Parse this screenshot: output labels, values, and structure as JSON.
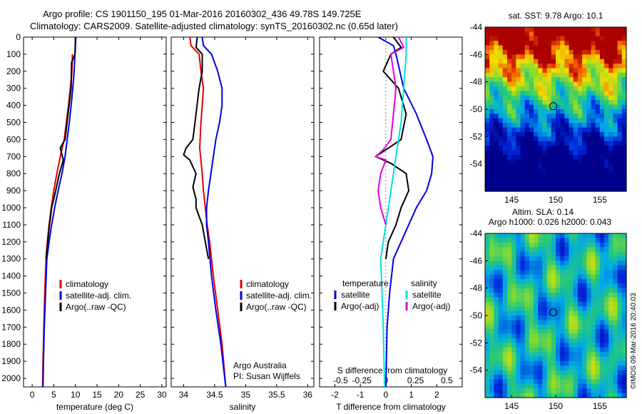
{
  "header": {
    "title_line1": "Argo profile: CS 1901150_195 01-Mar-2016 20160302_436 49.78S 149.725E",
    "title_line2": "Climatology: CARS2009. Satellite-adjusted climatology: synTS_20160302.nc (0.65d later)"
  },
  "credit": "©IMOS 09-Mar-2016 20:40:03",
  "colors": {
    "climatology": "#e00000",
    "satellite": "#0000e0",
    "argo": "#000000",
    "sat_salinity": "#00e0e0",
    "argo_salinity": "#e000e0"
  },
  "chart_data": [
    {
      "id": "temperature",
      "type": "line",
      "xlabel": "temperature (deg C)",
      "ylabel": "",
      "xlim": [
        -2,
        31
      ],
      "ylim": [
        0,
        2050
      ],
      "y_inverted": true,
      "xticks": [
        0,
        5,
        10,
        15,
        20,
        25,
        30
      ],
      "yticks": [
        0,
        100,
        200,
        300,
        400,
        500,
        600,
        700,
        800,
        900,
        1000,
        1100,
        1200,
        1300,
        1400,
        1500,
        1600,
        1700,
        1800,
        1900,
        2000
      ],
      "legend": [
        "climatology",
        "satellite-adj. clim.",
        "Argo(..raw -QC)"
      ],
      "series": [
        {
          "name": "climatology",
          "color_key": "climatology",
          "points": [
            [
              9.3,
              100
            ],
            [
              9.2,
              200
            ],
            [
              8.8,
              300
            ],
            [
              8.4,
              400
            ],
            [
              7.9,
              500
            ],
            [
              7.4,
              600
            ],
            [
              6.5,
              700
            ],
            [
              5.7,
              800
            ],
            [
              5.0,
              900
            ],
            [
              4.4,
              1000
            ],
            [
              3.9,
              1100
            ],
            [
              3.5,
              1200
            ],
            [
              3.2,
              1300
            ],
            [
              2.9,
              1500
            ],
            [
              2.7,
              1700
            ],
            [
              2.5,
              1900
            ],
            [
              2.4,
              2050
            ]
          ]
        },
        {
          "name": "satellite-adj. clim.",
          "color_key": "satellite",
          "points": [
            [
              10.0,
              0
            ],
            [
              9.9,
              100
            ],
            [
              9.7,
              200
            ],
            [
              9.4,
              300
            ],
            [
              9.0,
              400
            ],
            [
              8.6,
              500
            ],
            [
              8.1,
              600
            ],
            [
              7.6,
              700
            ],
            [
              6.9,
              800
            ],
            [
              6.0,
              900
            ],
            [
              5.2,
              1000
            ],
            [
              4.5,
              1100
            ],
            [
              3.9,
              1200
            ],
            [
              3.4,
              1300
            ],
            [
              3.1,
              1500
            ],
            [
              2.8,
              1700
            ],
            [
              2.6,
              1900
            ],
            [
              2.5,
              2050
            ]
          ]
        },
        {
          "name": "Argo(..raw -QC)",
          "color_key": "argo",
          "points": [
            [
              10.1,
              0
            ],
            [
              9.9,
              100
            ],
            [
              9.1,
              150
            ],
            [
              9.0,
              300
            ],
            [
              8.3,
              450
            ],
            [
              7.6,
              600
            ],
            [
              6.5,
              650
            ],
            [
              7.2,
              720
            ],
            [
              6.3,
              800
            ],
            [
              5.6,
              880
            ],
            [
              5.0,
              950
            ],
            [
              4.5,
              1000
            ],
            [
              4.0,
              1100
            ],
            [
              3.6,
              1200
            ],
            [
              3.2,
              1300
            ]
          ]
        }
      ]
    },
    {
      "id": "salinity",
      "type": "line",
      "xlabel": "salinity",
      "ylabel": "",
      "xlim": [
        33.8,
        36.1
      ],
      "ylim": [
        0,
        2050
      ],
      "y_inverted": true,
      "xticks": [
        34,
        34.5,
        35,
        35.5,
        36
      ],
      "legend": [
        "climatology",
        "satellite-adj. clim.",
        "Argo(..raw -QC)"
      ],
      "annotation": [
        "Argo Australia",
        "PI: Susan Wijffels"
      ],
      "series": [
        {
          "name": "climatology",
          "color_key": "climatology",
          "points": [
            [
              34.1,
              0
            ],
            [
              34.12,
              50
            ],
            [
              34.25,
              100
            ],
            [
              34.28,
              200
            ],
            [
              34.32,
              300
            ],
            [
              34.3,
              400
            ],
            [
              34.28,
              500
            ],
            [
              34.26,
              650
            ],
            [
              34.3,
              800
            ],
            [
              34.32,
              900
            ],
            [
              34.35,
              1000
            ],
            [
              34.38,
              1100
            ],
            [
              34.42,
              1200
            ],
            [
              34.48,
              1400
            ],
            [
              34.55,
              1600
            ],
            [
              34.62,
              1800
            ],
            [
              34.68,
              2050
            ]
          ]
        },
        {
          "name": "satellite-adj. clim.",
          "color_key": "satellite",
          "points": [
            [
              34.3,
              0
            ],
            [
              34.32,
              50
            ],
            [
              34.45,
              100
            ],
            [
              34.55,
              200
            ],
            [
              34.62,
              300
            ],
            [
              34.62,
              400
            ],
            [
              34.58,
              500
            ],
            [
              34.52,
              600
            ],
            [
              34.48,
              700
            ],
            [
              34.44,
              800
            ],
            [
              34.4,
              900
            ],
            [
              34.37,
              1000
            ],
            [
              34.37,
              1100
            ],
            [
              34.4,
              1200
            ],
            [
              34.45,
              1400
            ],
            [
              34.52,
              1600
            ],
            [
              34.6,
              1800
            ],
            [
              34.68,
              2050
            ]
          ]
        },
        {
          "name": "Argo(..raw -QC)",
          "color_key": "argo",
          "points": [
            [
              34.22,
              0
            ],
            [
              34.2,
              60
            ],
            [
              34.3,
              100
            ],
            [
              34.3,
              200
            ],
            [
              34.25,
              300
            ],
            [
              34.2,
              450
            ],
            [
              34.15,
              600
            ],
            [
              34.04,
              650
            ],
            [
              34.0,
              690
            ],
            [
              34.1,
              720
            ],
            [
              34.2,
              800
            ],
            [
              34.15,
              880
            ],
            [
              34.2,
              950
            ],
            [
              34.2,
              1000
            ],
            [
              34.25,
              1050
            ],
            [
              34.3,
              1100
            ],
            [
              34.35,
              1200
            ],
            [
              34.4,
              1300
            ]
          ]
        }
      ]
    },
    {
      "id": "difference",
      "type": "line",
      "xlabel": "T difference from climatology",
      "xlabel_top": "S difference from climatology",
      "xlim": [
        -2.6,
        3.0
      ],
      "ylim": [
        0,
        2050
      ],
      "y_inverted": true,
      "xticks": [
        -2,
        -1,
        0,
        1,
        2
      ],
      "xticks_s": [
        "-0.5",
        "-0.25",
        "0",
        "0.25",
        "0.5"
      ],
      "xticks_s_pos": [
        -2,
        -1,
        0,
        1,
        2
      ],
      "legend_t_title": "temperature",
      "legend_s_title": "salinity",
      "legend": [
        "satellite",
        "Argo(-adj)",
        "satellite",
        "Argo(-adj)"
      ],
      "series": [
        {
          "name": "satellite",
          "color_key": "satellite",
          "points": [
            [
              -0.3,
              0
            ],
            [
              0.3,
              50
            ],
            [
              0.4,
              100
            ],
            [
              0.7,
              300
            ],
            [
              1.2,
              450
            ],
            [
              1.6,
              600
            ],
            [
              1.85,
              700
            ],
            [
              1.8,
              800
            ],
            [
              1.6,
              900
            ],
            [
              1.2,
              1000
            ],
            [
              0.9,
              1100
            ],
            [
              0.6,
              1200
            ],
            [
              0.3,
              1300
            ],
            [
              0.15,
              1500
            ],
            [
              0.05,
              1700
            ],
            [
              0.0,
              2050
            ]
          ]
        },
        {
          "name": "Argo(-adj)",
          "color_key": "argo",
          "points": [
            [
              0.3,
              0
            ],
            [
              0.6,
              60
            ],
            [
              0.2,
              100
            ],
            [
              -0.1,
              200
            ],
            [
              0.5,
              300
            ],
            [
              0.8,
              450
            ],
            [
              0.6,
              600
            ],
            [
              0.0,
              660
            ],
            [
              -0.4,
              700
            ],
            [
              0.2,
              740
            ],
            [
              0.8,
              800
            ],
            [
              0.9,
              900
            ],
            [
              0.6,
              1000
            ],
            [
              0.4,
              1100
            ],
            [
              0.1,
              1200
            ],
            [
              0.0,
              1300
            ]
          ]
        },
        {
          "name": "satellite",
          "color_key": "sat_salinity",
          "points": [
            [
              0.8,
              0
            ],
            [
              0.8,
              100
            ],
            [
              0.7,
              300
            ],
            [
              0.6,
              500
            ],
            [
              0.4,
              700
            ],
            [
              0.2,
              900
            ],
            [
              0.0,
              1100
            ],
            [
              -0.2,
              1300
            ],
            [
              -0.15,
              1500
            ],
            [
              -0.1,
              1700
            ],
            [
              -0.05,
              2050
            ]
          ]
        },
        {
          "name": "Argo(-adj)",
          "color_key": "argo_salinity",
          "points": [
            [
              0.5,
              0
            ],
            [
              0.7,
              60
            ],
            [
              0.2,
              100
            ],
            [
              0.4,
              300
            ],
            [
              0.3,
              450
            ],
            [
              0.2,
              600
            ],
            [
              -0.1,
              660
            ],
            [
              -0.4,
              700
            ],
            [
              0.0,
              720
            ],
            [
              -0.2,
              800
            ],
            [
              -0.3,
              900
            ],
            [
              -0.2,
              1000
            ],
            [
              0.0,
              1100
            ]
          ]
        }
      ]
    },
    {
      "id": "sst-map",
      "type": "heatmap",
      "title": "sat. SST: 9.78 Argo: 10.1",
      "xlim": [
        142,
        158
      ],
      "ylim": [
        -56,
        -44
      ],
      "xticks": [
        145,
        150,
        155
      ],
      "yticks": [
        -44,
        -46,
        -48,
        -50,
        -52,
        -54
      ],
      "marker": [
        149.725,
        -49.78
      ]
    },
    {
      "id": "sla-map",
      "type": "heatmap",
      "title_line1": "Altim. SLA: 0.14",
      "title_line2": "Argo h1000: 0.026 h2000: 0.043",
      "xlim": [
        142,
        158
      ],
      "ylim": [
        -56,
        -44
      ],
      "xticks": [
        145,
        150,
        155
      ],
      "yticks": [
        -44,
        -46,
        -48,
        -50,
        -52,
        -54
      ],
      "marker": [
        149.725,
        -49.78
      ]
    }
  ]
}
